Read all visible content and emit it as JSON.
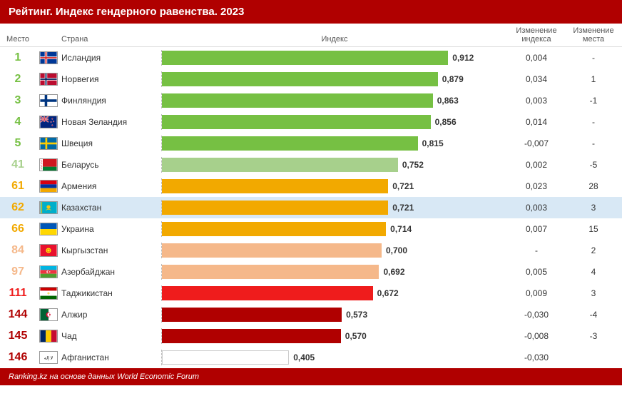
{
  "title": "Рейтинг. Индекс гендерного равенства. 2023",
  "columns": {
    "rank": "Место",
    "country": "Страна",
    "index": "Индекс",
    "change_index": "Изменение индекса",
    "change_rank": "Изменение места"
  },
  "max_value": 1.0,
  "bar_area_width": 440,
  "footer": "Ranking.kz на основе данных World Economic Forum",
  "header_bg": "#b00000",
  "rows": [
    {
      "rank": "1",
      "rank_color": "#76c043",
      "country": "Исландия",
      "flag": "iceland",
      "value": 0.912,
      "value_label": "0,912",
      "bar_color": "#76c043",
      "chg_idx": "0,004",
      "chg_rank": "-"
    },
    {
      "rank": "2",
      "rank_color": "#76c043",
      "country": "Норвегия",
      "flag": "norway",
      "value": 0.879,
      "value_label": "0,879",
      "bar_color": "#76c043",
      "chg_idx": "0,034",
      "chg_rank": "1"
    },
    {
      "rank": "3",
      "rank_color": "#76c043",
      "country": "Финляндия",
      "flag": "finland",
      "value": 0.863,
      "value_label": "0,863",
      "bar_color": "#76c043",
      "chg_idx": "0,003",
      "chg_rank": "-1"
    },
    {
      "rank": "4",
      "rank_color": "#76c043",
      "country": "Новая Зеландия",
      "flag": "newzealand",
      "value": 0.856,
      "value_label": "0,856",
      "bar_color": "#76c043",
      "chg_idx": "0,014",
      "chg_rank": "-"
    },
    {
      "rank": "5",
      "rank_color": "#76c043",
      "country": "Швеция",
      "flag": "sweden",
      "value": 0.815,
      "value_label": "0,815",
      "bar_color": "#76c043",
      "chg_idx": "-0,007",
      "chg_rank": "-"
    },
    {
      "rank": "41",
      "rank_color": "#a7d08c",
      "country": "Беларусь",
      "flag": "belarus",
      "value": 0.752,
      "value_label": "0,752",
      "bar_color": "#a7d08c",
      "chg_idx": "0,002",
      "chg_rank": "-5"
    },
    {
      "rank": "61",
      "rank_color": "#f2a900",
      "country": "Армения",
      "flag": "armenia",
      "value": 0.721,
      "value_label": "0,721",
      "bar_color": "#f2a900",
      "chg_idx": "0,023",
      "chg_rank": "28"
    },
    {
      "rank": "62",
      "rank_color": "#f2a900",
      "country": "Казахстан",
      "flag": "kazakhstan",
      "value": 0.721,
      "value_label": "0,721",
      "bar_color": "#f2a900",
      "chg_idx": "0,003",
      "chg_rank": "3",
      "highlight": true
    },
    {
      "rank": "66",
      "rank_color": "#f2a900",
      "country": "Украина",
      "flag": "ukraine",
      "value": 0.714,
      "value_label": "0,714",
      "bar_color": "#f2a900",
      "chg_idx": "0,007",
      "chg_rank": "15"
    },
    {
      "rank": "84",
      "rank_color": "#f5b88a",
      "country": "Кыргызстан",
      "flag": "kyrgyzstan",
      "value": 0.7,
      "value_label": "0,700",
      "bar_color": "#f5b88a",
      "chg_idx": "-",
      "chg_rank": "2"
    },
    {
      "rank": "97",
      "rank_color": "#f5b88a",
      "country": "Азербайджан",
      "flag": "azerbaijan",
      "value": 0.692,
      "value_label": "0,692",
      "bar_color": "#f5b88a",
      "chg_idx": "0,005",
      "chg_rank": "4"
    },
    {
      "rank": "111",
      "rank_color": "#ef1c1c",
      "country": "Таджикистан",
      "flag": "tajikistan",
      "value": 0.672,
      "value_label": "0,672",
      "bar_color": "#ef1c1c",
      "chg_idx": "0,009",
      "chg_rank": "3"
    },
    {
      "rank": "144",
      "rank_color": "#b00000",
      "country": "Алжир",
      "flag": "algeria",
      "value": 0.573,
      "value_label": "0,573",
      "bar_color": "#b00000",
      "chg_idx": "-0,030",
      "chg_rank": "-4"
    },
    {
      "rank": "145",
      "rank_color": "#b00000",
      "country": "Чад",
      "flag": "chad",
      "value": 0.57,
      "value_label": "0,570",
      "bar_color": "#b00000",
      "chg_idx": "-0,008",
      "chg_rank": "-3"
    },
    {
      "rank": "146",
      "rank_color": "#b00000",
      "country": "Афганистан",
      "flag": "afghanistan",
      "value": 0.405,
      "value_label": "0,405",
      "bar_color": "#ffffff",
      "bar_border": "#ccc",
      "chg_idx": "-0,030",
      "chg_rank": ""
    }
  ]
}
